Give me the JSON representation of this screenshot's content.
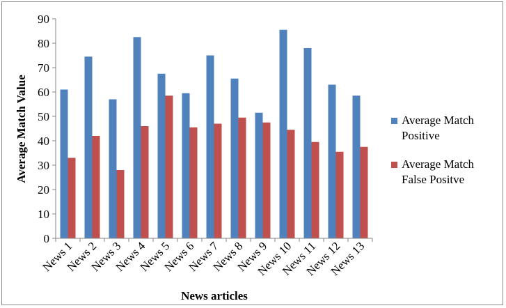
{
  "chart_data": {
    "type": "bar",
    "title": "",
    "xlabel": "News articles",
    "ylabel": "Average Match Value",
    "ylim": [
      0,
      90
    ],
    "yticks": [
      0,
      10,
      20,
      30,
      40,
      50,
      60,
      70,
      80,
      90
    ],
    "grid": false,
    "legend_position": "right",
    "categories": [
      "News 1",
      "News 2",
      "News 3",
      "News 4",
      "News 5",
      "News 6",
      "News 7",
      "News 8",
      "News 9",
      "News 10",
      "News 11",
      "News 12",
      "News 13"
    ],
    "series": [
      {
        "name": "Average Match Positive",
        "legend_lines": [
          "Average Match",
          "Positive"
        ],
        "color": "#4f81bd",
        "values": [
          61,
          74.5,
          57,
          82.5,
          67.5,
          59.5,
          75,
          65.5,
          51.5,
          85.5,
          78,
          63,
          58.5
        ]
      },
      {
        "name": "Average Match False Positve",
        "legend_lines": [
          "Average Match",
          "False Positve"
        ],
        "color": "#c0504d",
        "values": [
          33,
          42,
          28,
          46,
          58.5,
          45.5,
          47,
          49.5,
          47.5,
          44.5,
          39.5,
          35.5,
          37.5
        ]
      }
    ]
  }
}
